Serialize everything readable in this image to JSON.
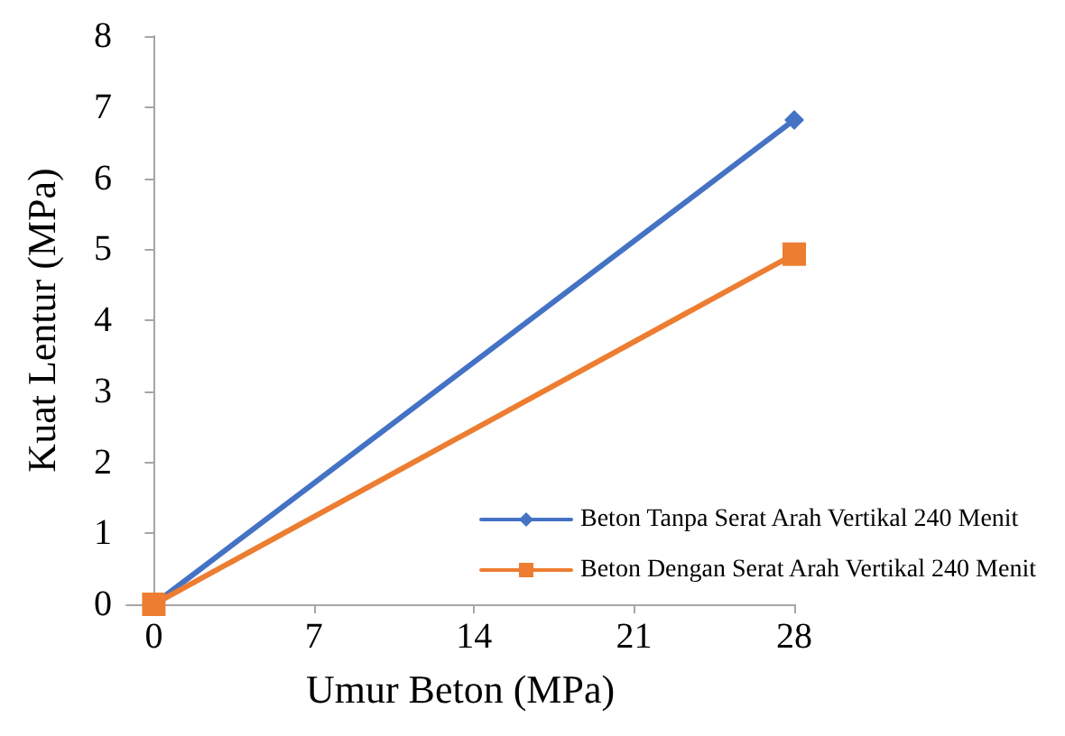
{
  "chart_data": {
    "type": "line",
    "xlabel": "Umur Beton (MPa)",
    "ylabel": "Kuat Lentur (MPa)",
    "x": [
      0,
      28
    ],
    "series": [
      {
        "name": "Beton Tanpa Serat Arah Vertikal 240 Menit",
        "color": "#4472c4",
        "values": [
          0,
          6.82
        ],
        "marker": "diamond"
      },
      {
        "name": "Beton Dengan Serat Arah Vertikal 240 Menit",
        "color": "#ed7d31",
        "values": [
          0,
          4.93
        ],
        "marker": "square"
      }
    ],
    "xlim": [
      -1.2,
      28
    ],
    "xticks": [
      0,
      7,
      14,
      21,
      28
    ],
    "ylim": [
      0,
      8
    ],
    "yticks": [
      0,
      1,
      2,
      3,
      4,
      5,
      6,
      7,
      8
    ],
    "grid": false,
    "legend": "bottom right"
  }
}
